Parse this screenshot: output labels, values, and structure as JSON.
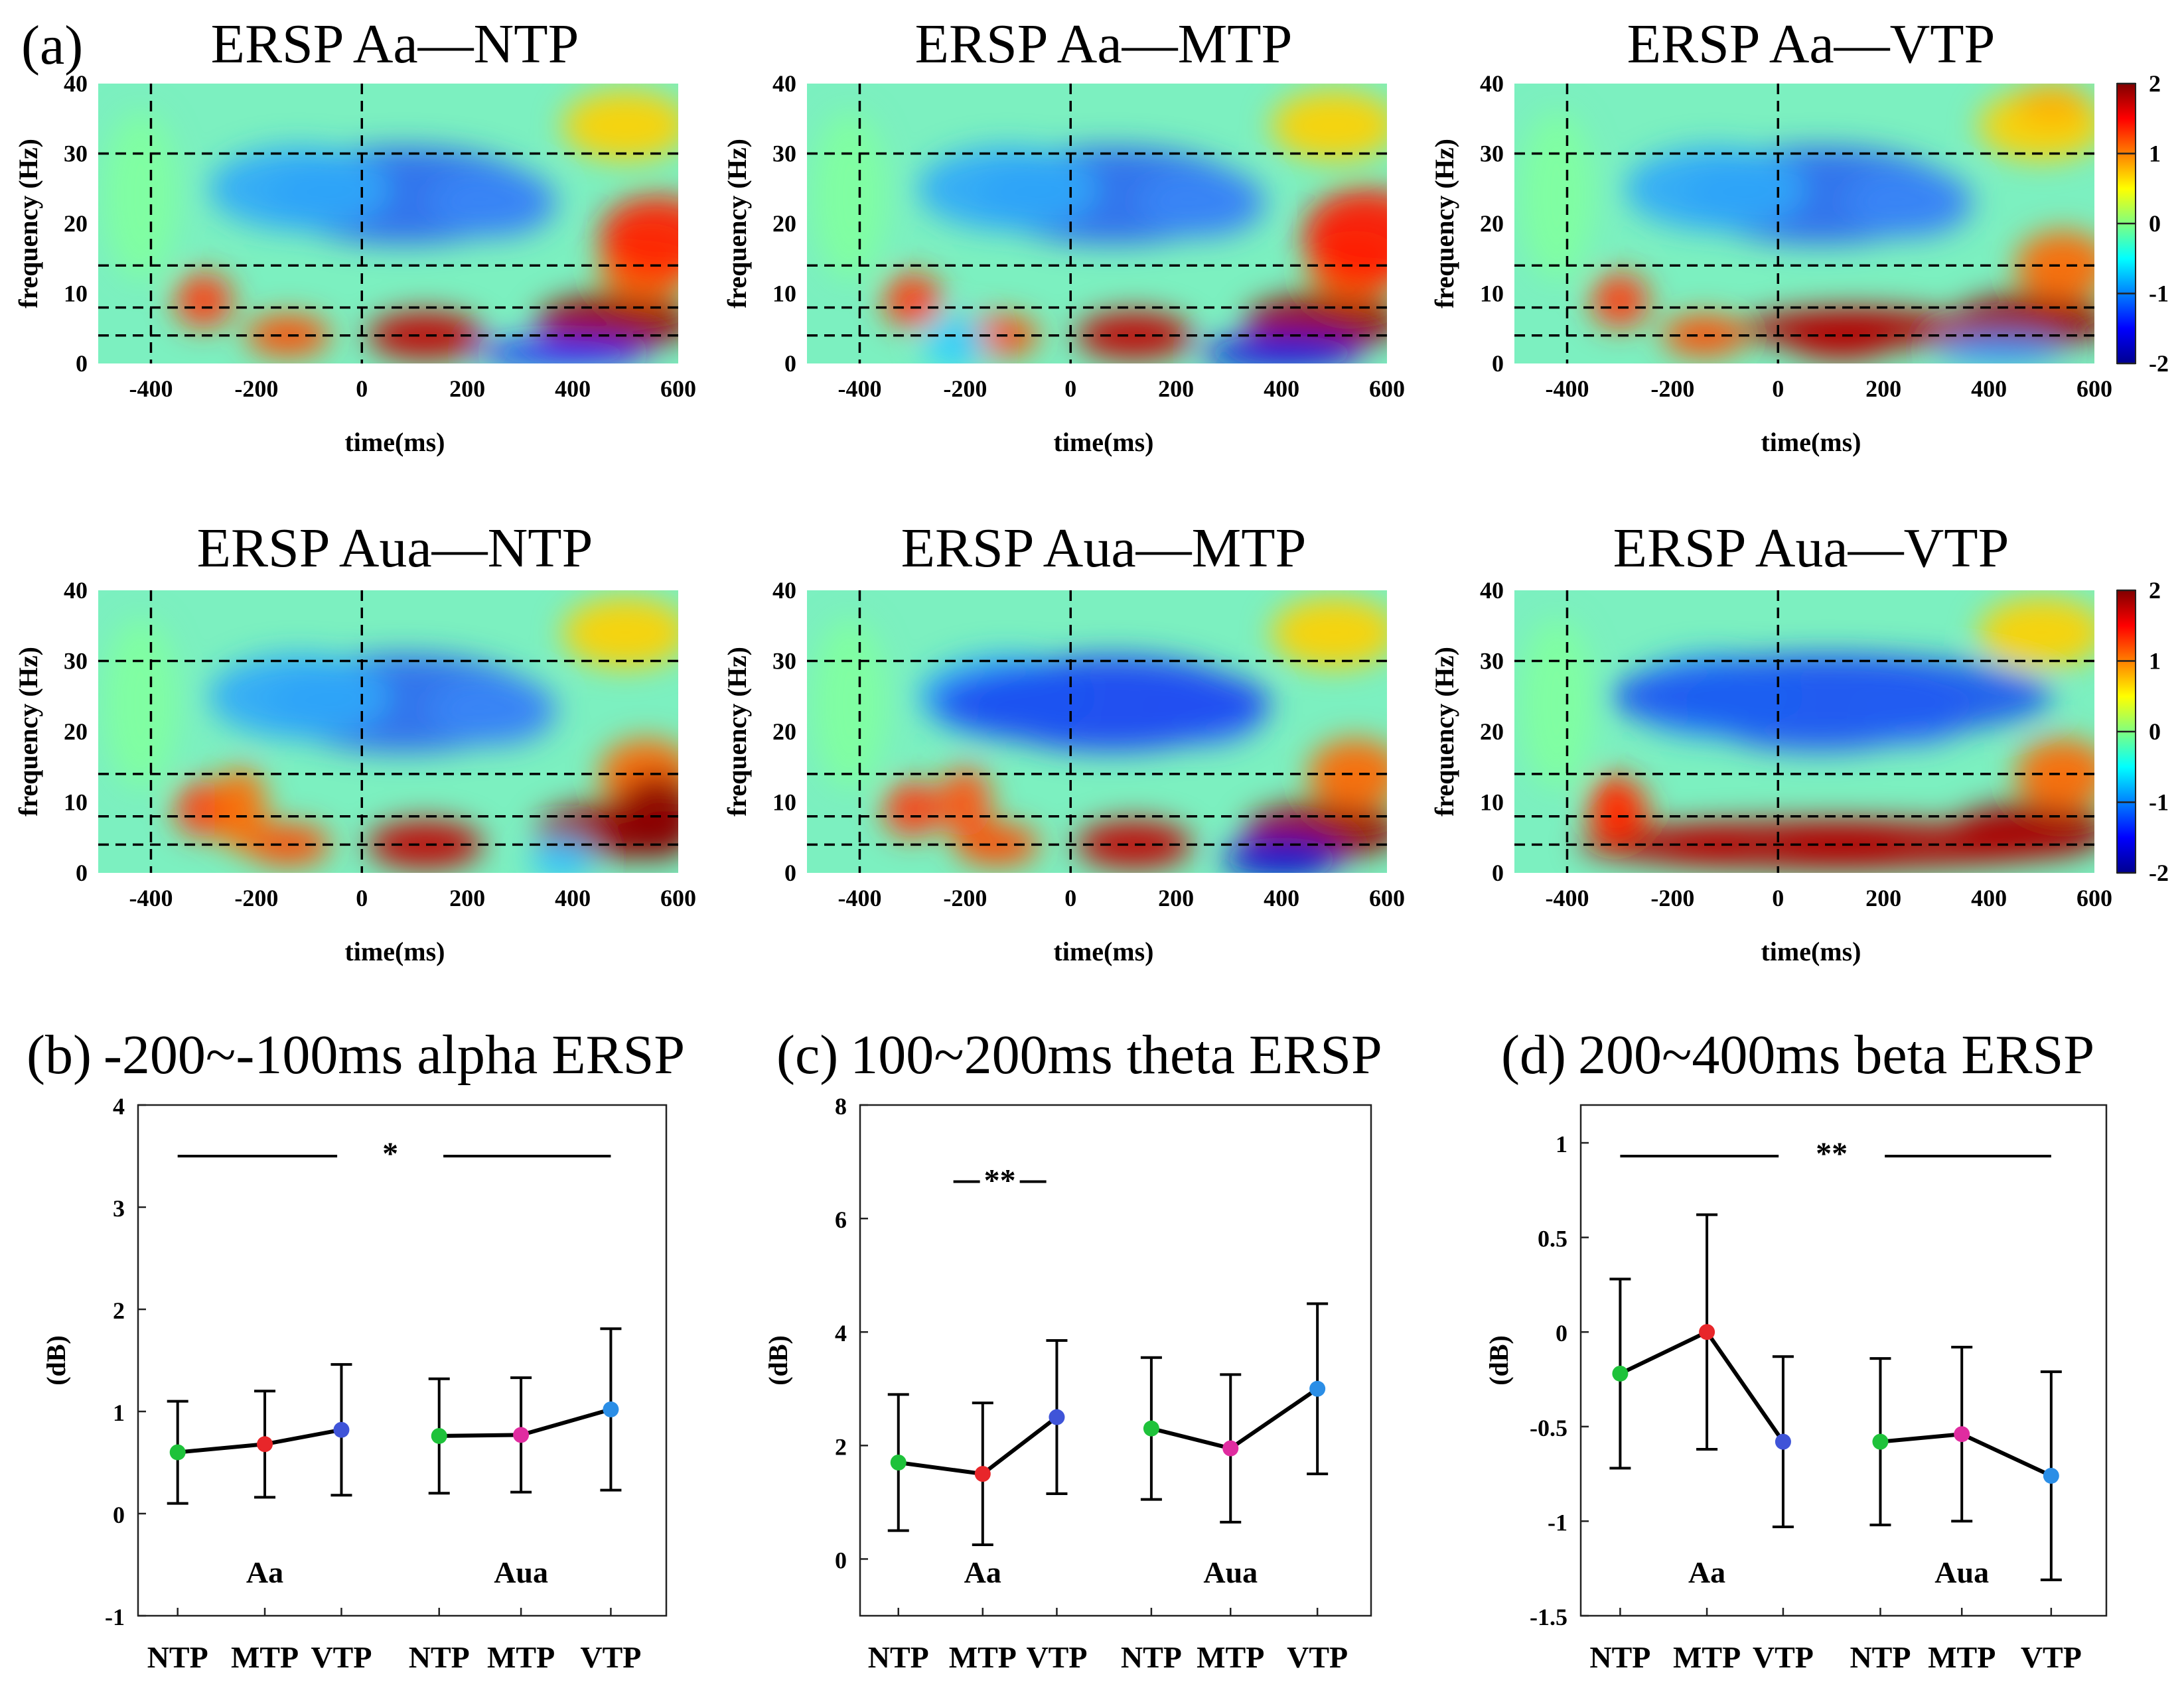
{
  "panel_a_label": "(a)",
  "heatmaps": [
    {
      "title": "ERSP Aa—NTP"
    },
    {
      "title": "ERSP Aa—MTP"
    },
    {
      "title": "ERSP Aa—VTP"
    },
    {
      "title": "ERSP Aua—NTP"
    },
    {
      "title": "ERSP Aua—MTP"
    },
    {
      "title": "ERSP Aua—VTP"
    }
  ],
  "heatmap_axes": {
    "xlabel": "time(ms)",
    "ylabel": "frequency (Hz)",
    "xticks": [
      "-400",
      "-200",
      "0",
      "200",
      "400",
      "600"
    ],
    "yticks": [
      "0",
      "10",
      "20",
      "30",
      "40"
    ],
    "colorbar_ticks": [
      "2",
      "1",
      "0",
      "-1",
      "-2"
    ]
  },
  "chart_data": [
    {
      "type": "heatmap",
      "panel": "a",
      "titles": [
        "ERSP Aa—NTP",
        "ERSP Aa—MTP",
        "ERSP Aa—VTP",
        "ERSP Aua—NTP",
        "ERSP Aua—MTP",
        "ERSP Aua—VTP"
      ],
      "x_range_ms": [
        -500,
        600
      ],
      "y_range_hz": [
        0,
        40
      ],
      "color_range_db": [
        -2,
        2
      ],
      "colormap": "jet",
      "reference_lines": {
        "time_ms": [
          -400,
          0
        ],
        "frequency_hz": [
          4,
          8,
          14,
          30
        ]
      }
    },
    {
      "type": "line",
      "label": "(b)",
      "title": "-200~-100ms alpha ERSP",
      "ylabel": "(dB)",
      "ylim": [
        -1,
        4
      ],
      "yticks": [
        "-1",
        "0",
        "1",
        "2",
        "3",
        "4"
      ],
      "groups": [
        "Aa",
        "Aua"
      ],
      "categories": [
        "NTP",
        "MTP",
        "VTP",
        "NTP",
        "MTP",
        "VTP"
      ],
      "values": [
        0.6,
        0.68,
        0.82,
        0.76,
        0.77,
        1.02
      ],
      "errors": [
        0.5,
        0.52,
        0.64,
        0.56,
        0.56,
        0.79
      ],
      "significance": "*"
    },
    {
      "type": "line",
      "label": "(c)",
      "title": "100~200ms theta ERSP",
      "ylabel": "(dB)",
      "ylim": [
        -1,
        8
      ],
      "yticks": [
        "0",
        "2",
        "4",
        "6",
        "8"
      ],
      "groups": [
        "Aa",
        "Aua"
      ],
      "categories": [
        "NTP",
        "MTP",
        "VTP",
        "NTP",
        "MTP",
        "VTP"
      ],
      "values": [
        1.7,
        1.5,
        2.5,
        2.3,
        1.95,
        3.0
      ],
      "errors": [
        1.2,
        1.25,
        1.35,
        1.25,
        1.3,
        1.5
      ],
      "significance": "**"
    },
    {
      "type": "line",
      "label": "(d)",
      "title": "200~400ms beta ERSP",
      "ylabel": "(dB)",
      "ylim": [
        -1.5,
        1.2
      ],
      "yticks": [
        "1",
        "0.5",
        "0",
        "-0.5",
        "-1",
        "-1.5"
      ],
      "groups": [
        "Aa",
        "Aua"
      ],
      "categories": [
        "NTP",
        "MTP",
        "VTP",
        "NTP",
        "MTP",
        "VTP"
      ],
      "values": [
        -0.22,
        0.0,
        -0.58,
        -0.58,
        -0.54,
        -0.76
      ],
      "errors": [
        0.5,
        0.62,
        0.45,
        0.44,
        0.46,
        0.55
      ],
      "significance": "**"
    }
  ],
  "colors": {
    "NTP": "#1ec23a",
    "MTP_Aa": "#e8262a",
    "MTP_Aua": "#e02ca0",
    "VTP_Aa": "#3f54d8",
    "VTP_Aua": "#2b8ee6"
  }
}
